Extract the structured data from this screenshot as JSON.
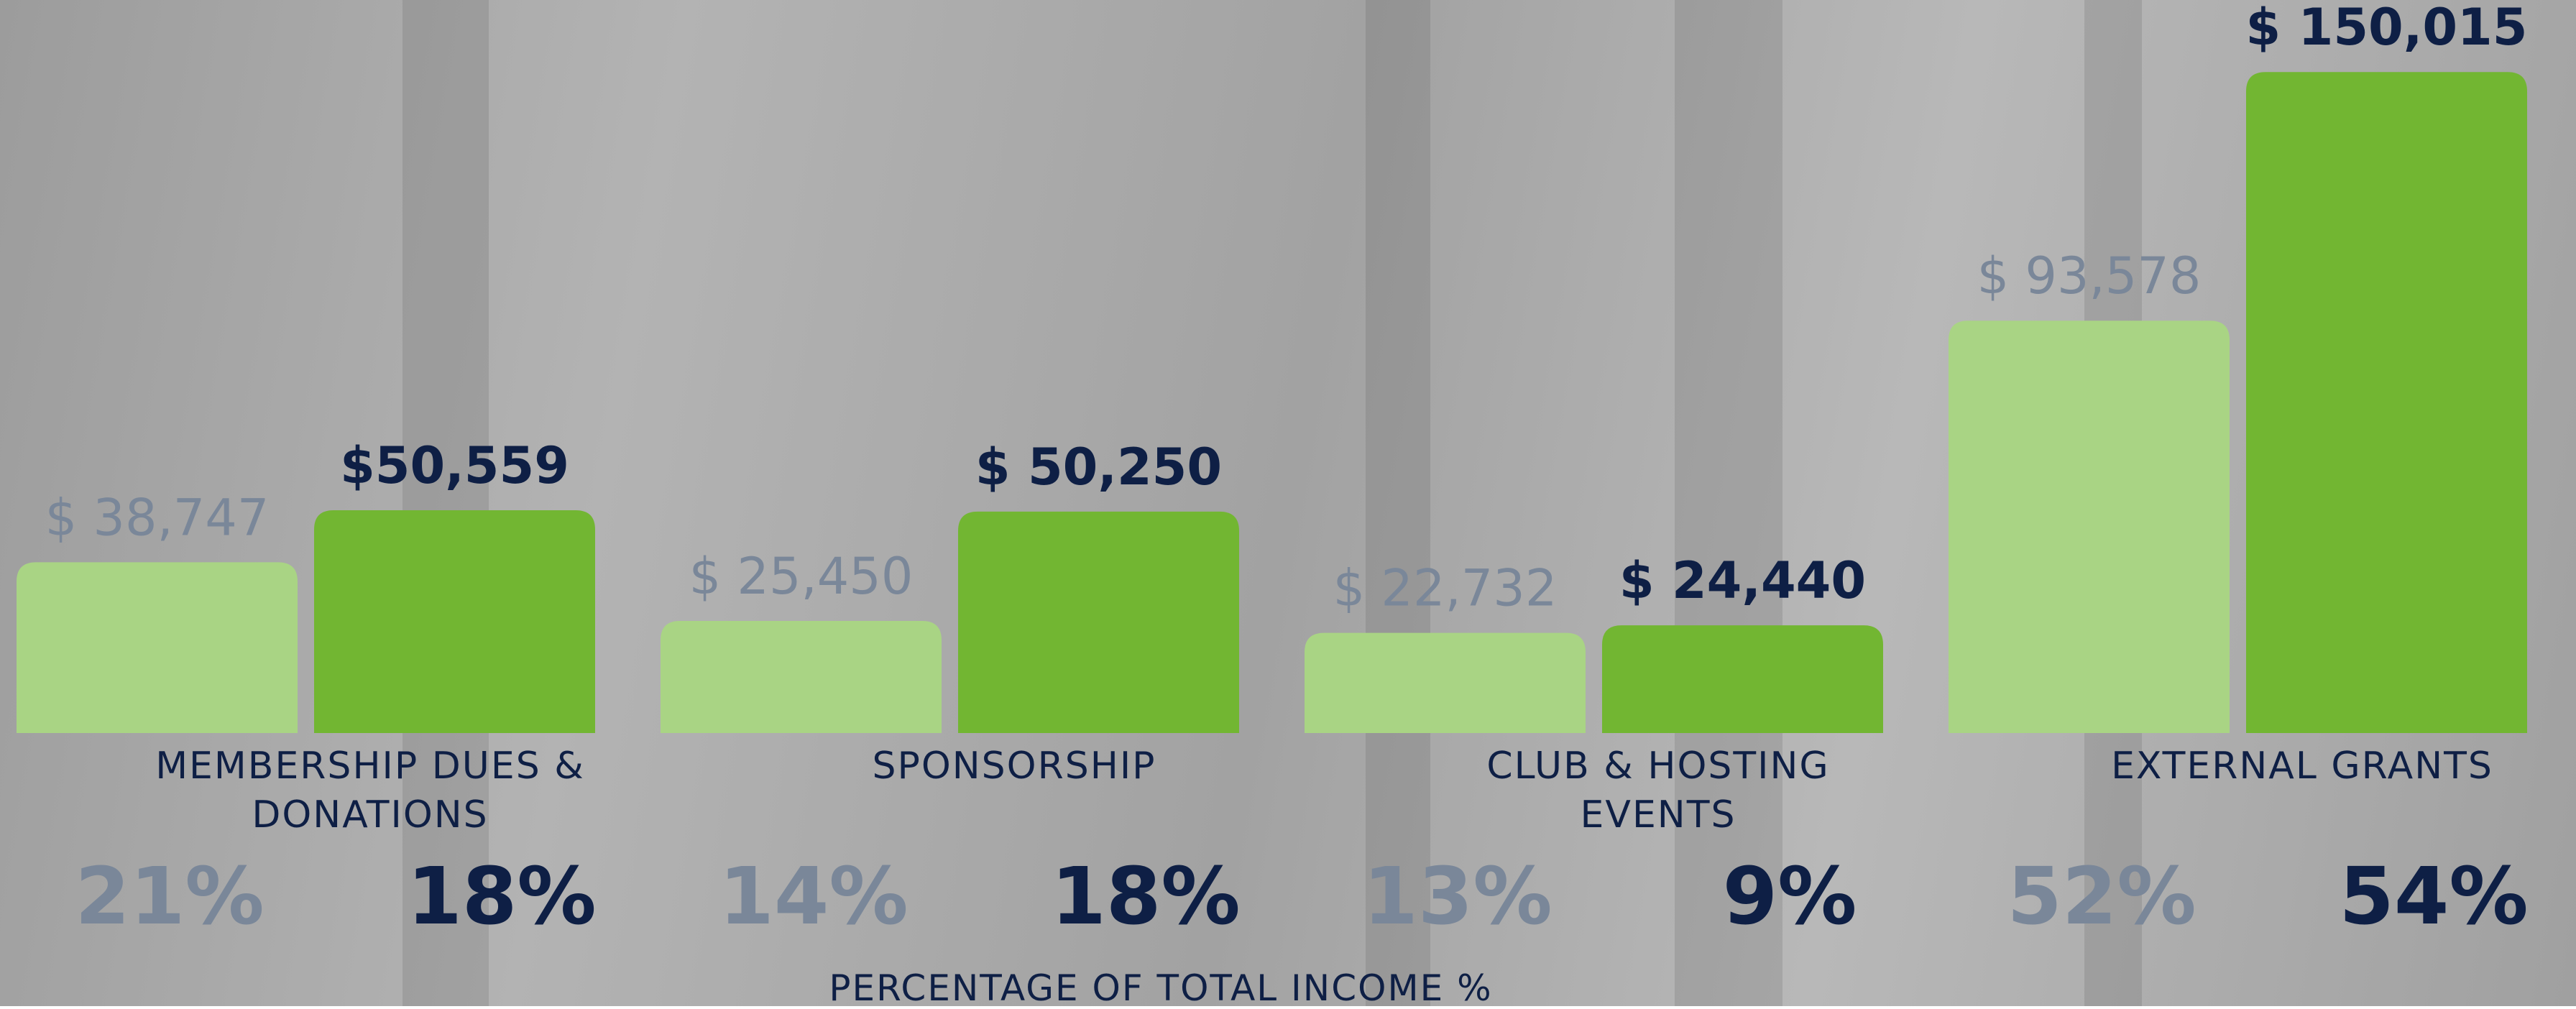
{
  "chart_data": {
    "type": "bar",
    "categories": [
      "MEMBERSHIP DUES & DONATIONS",
      "SPONSORSHIP",
      "CLUB & HOSTING EVENTS",
      "EXTERNAL GRANTS"
    ],
    "series": [
      {
        "color": "#a9d484",
        "label_color": "#7a8799",
        "values": [
          38747,
          25450,
          22732,
          93578
        ],
        "value_labels": [
          "$ 38,747",
          "$ 25,450",
          "$ 22,732",
          "$ 93,578"
        ],
        "percents": [
          21,
          14,
          13,
          52
        ],
        "percent_labels": [
          "21%",
          "14%",
          "13%",
          "52%"
        ]
      },
      {
        "color": "#72b632",
        "label_color": "#0e1f45",
        "values": [
          50559,
          50250,
          24440,
          150015
        ],
        "value_labels": [
          "$50,559",
          "$ 50,250",
          "$ 24,440",
          "$ 150,015"
        ],
        "percents": [
          18,
          18,
          9,
          54
        ],
        "percent_labels": [
          "18%",
          "18%",
          "9%",
          "54%"
        ]
      }
    ],
    "ylim": [
      0,
      160000
    ],
    "x_axis_label": "PERCENTAGE OF TOTAL INCOME %"
  }
}
